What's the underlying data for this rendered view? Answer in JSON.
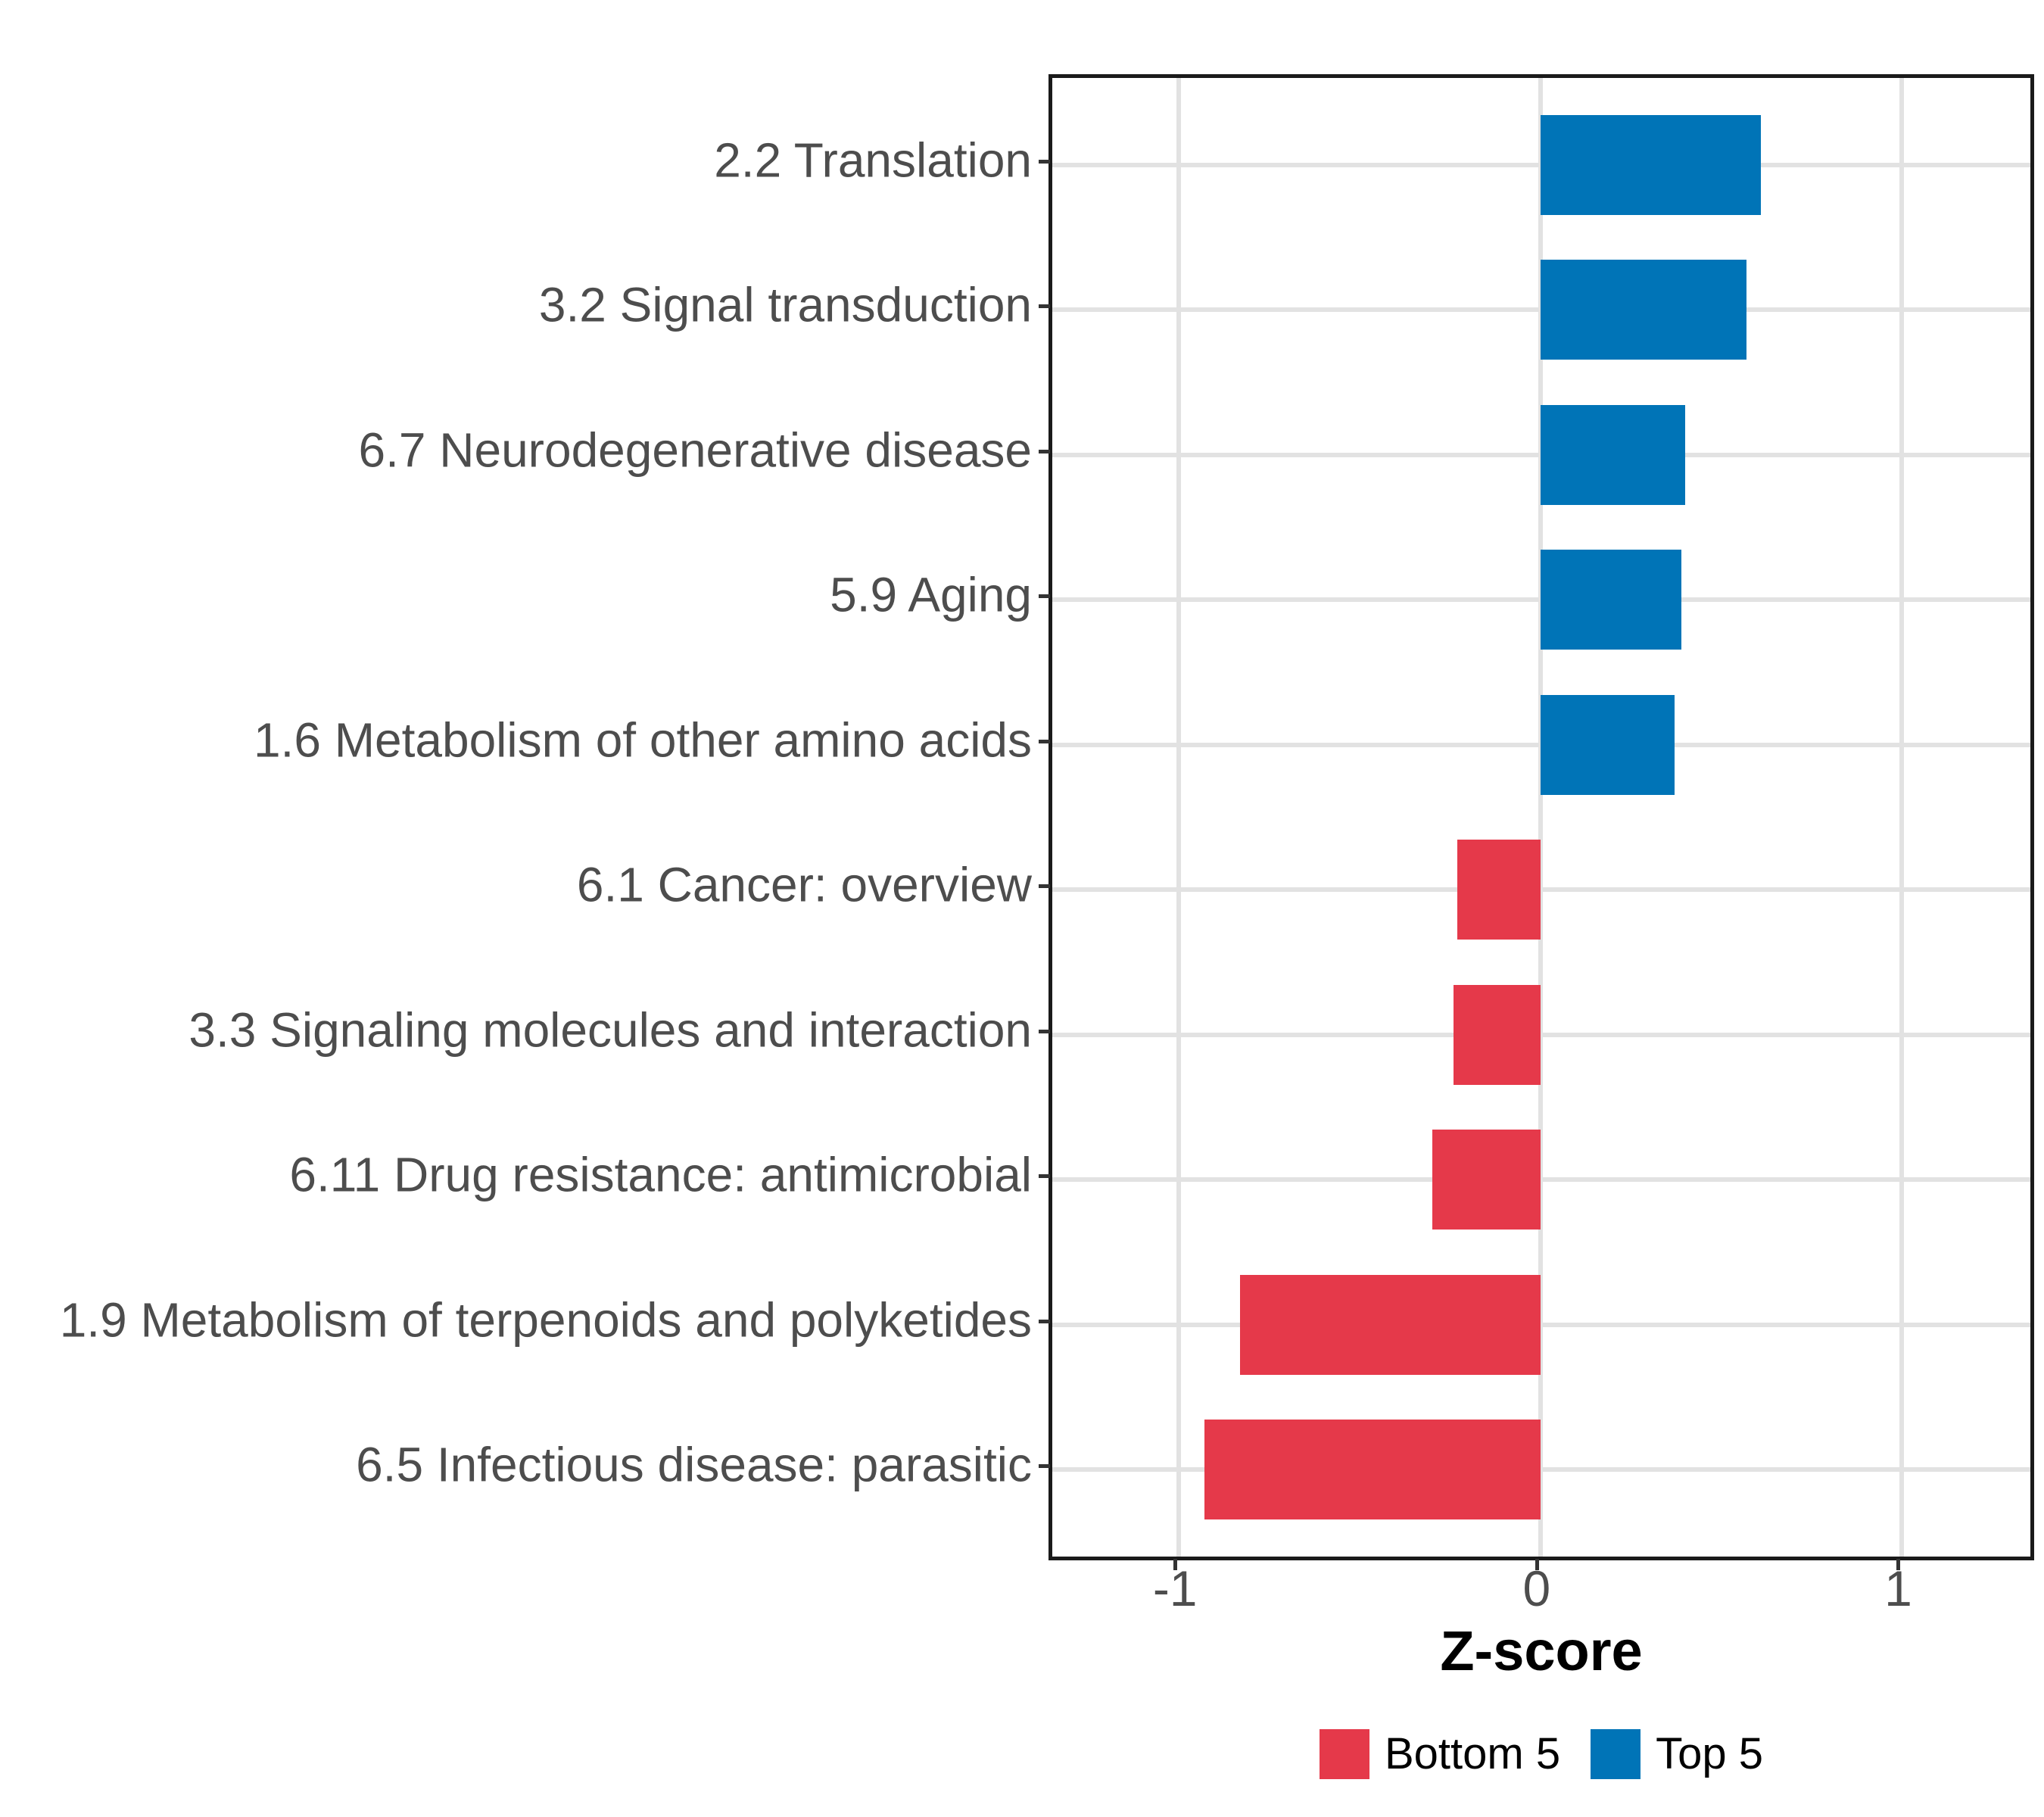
{
  "chart_data": {
    "type": "bar",
    "orientation": "horizontal",
    "title": "",
    "xlabel": "Z-score",
    "ylabel": "",
    "x_ticks": [
      -1,
      0,
      1
    ],
    "x_tick_labels": [
      "-1",
      "0",
      "1"
    ],
    "xlim": [
      -1.35,
      1.355
    ],
    "grid": "major-only",
    "panel_background": "#FFFFFF",
    "panel_border_color": "#1A1A1A",
    "gridline_color": "#E2E2E2",
    "axis_text_color": "#4D4D4D",
    "bars": [
      {
        "label": "2.2 Translation",
        "value": 0.61,
        "group": "Top 5"
      },
      {
        "label": "3.2 Signal transduction",
        "value": 0.57,
        "group": "Top 5"
      },
      {
        "label": "6.7 Neurodegenerative disease",
        "value": 0.4,
        "group": "Top 5"
      },
      {
        "label": "5.9 Aging",
        "value": 0.39,
        "group": "Top 5"
      },
      {
        "label": "1.6 Metabolism of other amino acids",
        "value": 0.37,
        "group": "Top 5"
      },
      {
        "label": "6.1 Cancer: overview",
        "value": -0.23,
        "group": "Bottom 5"
      },
      {
        "label": "3.3 Signaling molecules and interaction",
        "value": -0.24,
        "group": "Bottom 5"
      },
      {
        "label": "6.11 Drug resistance: antimicrobial",
        "value": -0.3,
        "group": "Bottom 5"
      },
      {
        "label": "1.9 Metabolism of terpenoids and polyketides",
        "value": -0.83,
        "group": "Bottom 5"
      },
      {
        "label": "6.5 Infectious disease: parasitic",
        "value": -0.93,
        "group": "Bottom 5"
      }
    ],
    "colors": {
      "Bottom 5": "#E5394A",
      "Top 5": "#0074B7"
    },
    "legend_position": "bottom",
    "legend": [
      {
        "label": "Bottom 5",
        "color": "#E5394A"
      },
      {
        "label": "Top 5",
        "color": "#0074B7"
      }
    ]
  }
}
